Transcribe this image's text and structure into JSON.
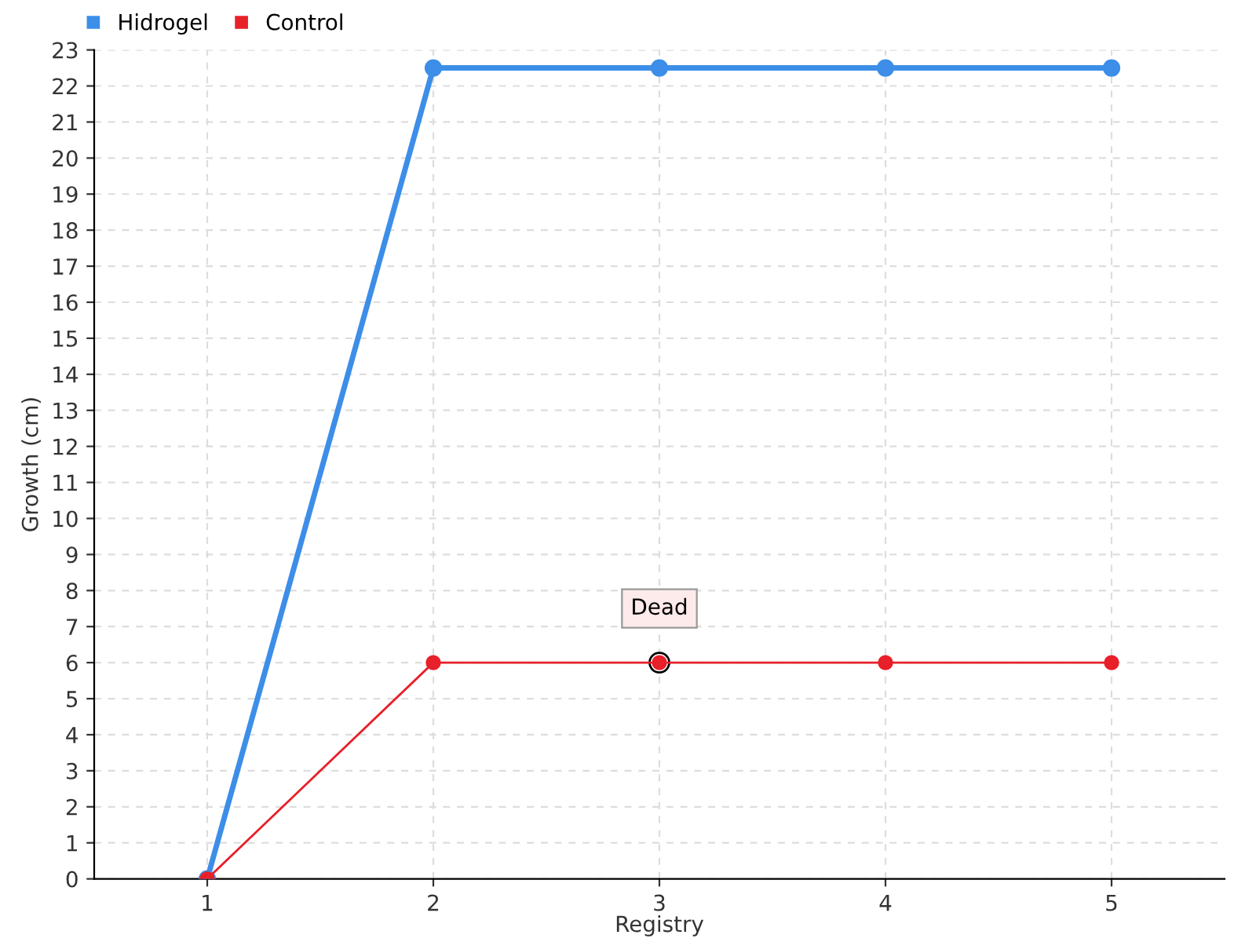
{
  "chart_data": {
    "type": "line",
    "xlabel": "Registry",
    "ylabel": "Growth (cm)",
    "x": [
      1,
      2,
      3,
      4,
      5
    ],
    "series": [
      {
        "name": "Hidrogel",
        "color": "#3c8ee8",
        "values": [
          0,
          22.5,
          22.5,
          22.5,
          22.5
        ]
      },
      {
        "name": "Control",
        "color": "#e8202a",
        "values": [
          0,
          6,
          6,
          6,
          6
        ]
      }
    ],
    "xlim": [
      0.5,
      5.5
    ],
    "xticks": [
      1,
      2,
      3,
      4,
      5
    ],
    "ylim": [
      0,
      23
    ],
    "yticks": [
      0,
      1,
      2,
      3,
      4,
      5,
      6,
      7,
      8,
      9,
      10,
      11,
      12,
      13,
      14,
      15,
      16,
      17,
      18,
      19,
      20,
      21,
      22,
      23
    ],
    "grid": true,
    "legend": "top left",
    "marker": "circle",
    "line_style": "solid",
    "annotations": [
      {
        "text": "Dead",
        "x": 3,
        "y": 6
      }
    ]
  }
}
